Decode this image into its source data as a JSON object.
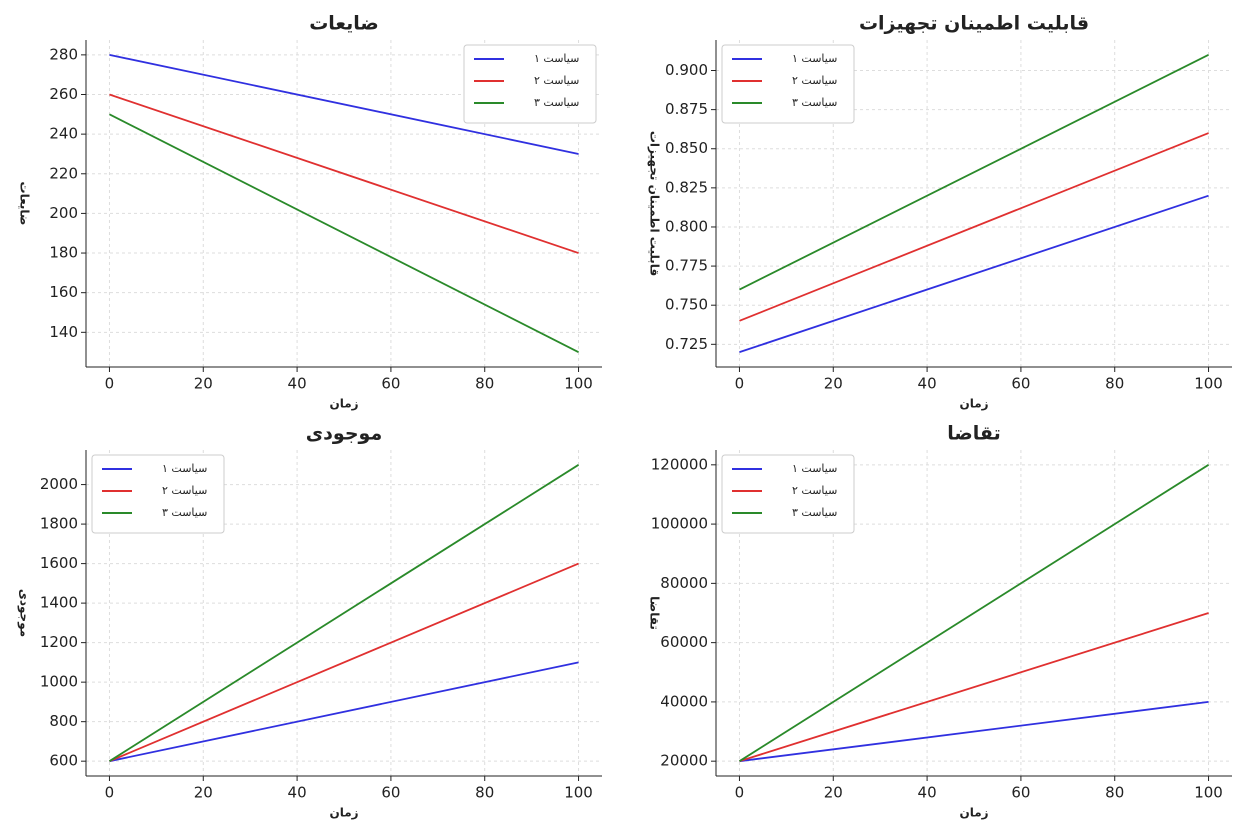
{
  "chart_data": [
    {
      "type": "line",
      "title": "ضایعات",
      "xlabel": "زمان",
      "ylabel": "ضایعات",
      "x": [
        0,
        100
      ],
      "series": [
        {
          "name": "سیاست ۱",
          "color": "#3030e0",
          "values": [
            280,
            230
          ]
        },
        {
          "name": "سیاست ۲",
          "color": "#e03030",
          "values": [
            260,
            180
          ]
        },
        {
          "name": "سیاست ۳",
          "color": "#2a8a2a",
          "values": [
            250,
            130
          ]
        }
      ],
      "xlim": [
        -5,
        105
      ],
      "xticks": [
        0,
        20,
        40,
        60,
        80,
        100
      ],
      "ylim": [
        122.5,
        287.5
      ],
      "yticks": [
        140,
        160,
        180,
        200,
        220,
        240,
        260,
        280
      ],
      "grid": true,
      "legend": "upper right"
    },
    {
      "type": "line",
      "title": "قابلیت اطمینان تجهیزات",
      "xlabel": "زمان",
      "ylabel": "قابلیت اطمینان تجهیزات",
      "x": [
        0,
        100
      ],
      "series": [
        {
          "name": "سیاست ۱",
          "color": "#3030e0",
          "values": [
            0.72,
            0.82
          ]
        },
        {
          "name": "سیاست ۲",
          "color": "#e03030",
          "values": [
            0.74,
            0.86
          ]
        },
        {
          "name": "سیاست ۳",
          "color": "#2a8a2a",
          "values": [
            0.76,
            0.91
          ]
        }
      ],
      "xlim": [
        -5,
        105
      ],
      "xticks": [
        0,
        20,
        40,
        60,
        80,
        100
      ],
      "ylim": [
        0.7105,
        0.9195
      ],
      "yticks": [
        0.725,
        {
          "value": 0.75,
          "label": "0.750"
        },
        0.775,
        {
          "value": 0.8,
          "label": "0.800"
        },
        0.825,
        {
          "value": 0.85,
          "label": "0.850"
        },
        0.875,
        {
          "value": 0.9,
          "label": "0.900"
        }
      ],
      "grid": true,
      "legend": "upper left"
    },
    {
      "type": "line",
      "title": "موجودی",
      "xlabel": "زمان",
      "ylabel": "موجودی",
      "x": [
        0,
        100
      ],
      "series": [
        {
          "name": "سیاست ۱",
          "color": "#3030e0",
          "values": [
            600,
            1100
          ]
        },
        {
          "name": "سیاست ۲",
          "color": "#e03030",
          "values": [
            600,
            1600
          ]
        },
        {
          "name": "سیاست ۳",
          "color": "#2a8a2a",
          "values": [
            600,
            2100
          ]
        }
      ],
      "xlim": [
        -5,
        105
      ],
      "xticks": [
        0,
        20,
        40,
        60,
        80,
        100
      ],
      "ylim": [
        525,
        2175
      ],
      "yticks": [
        600,
        800,
        1000,
        1200,
        1400,
        1600,
        1800,
        2000
      ],
      "grid": true,
      "legend": "upper left"
    },
    {
      "type": "line",
      "title": "تقاضا",
      "xlabel": "زمان",
      "ylabel": "تقاضا",
      "x": [
        0,
        100
      ],
      "series": [
        {
          "name": "سیاست ۱",
          "color": "#3030e0",
          "values": [
            20000,
            40000
          ]
        },
        {
          "name": "سیاست ۲",
          "color": "#e03030",
          "values": [
            20000,
            70000
          ]
        },
        {
          "name": "سیاست ۳",
          "color": "#2a8a2a",
          "values": [
            20000,
            120000
          ]
        }
      ],
      "xlim": [
        -5,
        105
      ],
      "xticks": [
        0,
        20,
        40,
        60,
        80,
        100
      ],
      "ylim": [
        15000,
        125000
      ],
      "yticks": [
        20000,
        40000,
        60000,
        80000,
        100000,
        120000
      ],
      "grid": true,
      "legend": "upper left"
    }
  ]
}
